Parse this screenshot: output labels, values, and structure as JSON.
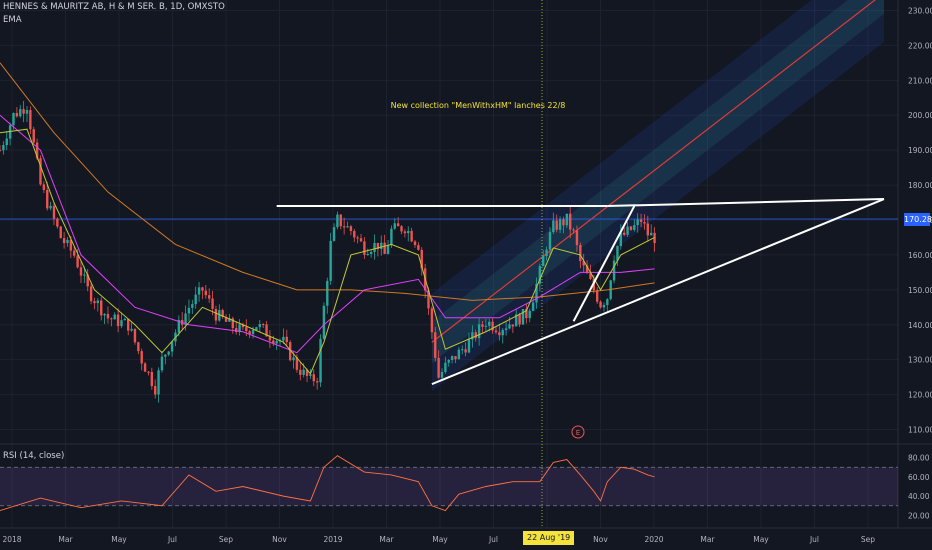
{
  "header": {
    "symbol": "HENNES & MAURITZ AB, H & M SER. B, 1D, OMXSTO",
    "indicator": "EMA"
  },
  "rsi_label": "RSI (14, close)",
  "last_price_label": "170.28",
  "crosshair_date_label": "22 Aug '19",
  "event_marker": "E",
  "annotation": "New collection \"MenWithxHM\" lanches 22/8",
  "colors": {
    "background": "#131722",
    "up": "#26a69a",
    "down": "#ef5350",
    "ema_fast": "#c0ca33",
    "ema_mid": "#e040fb",
    "ema_slow": "#d17a22",
    "rsi": "#ff7043",
    "channel_center": "#e53935",
    "trendline": "#ffffff"
  },
  "chart_data": {
    "type": "candlestick",
    "price_axis_ticks": [
      "230.00",
      "220.00",
      "210.00",
      "200.00",
      "190.00",
      "180.00",
      "170.00",
      "160.00",
      "150.00",
      "140.00",
      "130.00",
      "120.00",
      "110.00"
    ],
    "rsi_axis_ticks": [
      "80.00",
      "60.00",
      "40.00",
      "20.00"
    ],
    "time_axis_ticks": [
      "2018",
      "Mar",
      "May",
      "Jul",
      "Sep",
      "Nov",
      "2019",
      "Mar",
      "May",
      "Jul",
      "Sep",
      "Nov",
      "2020",
      "Mar",
      "May",
      "Jul",
      "Sep"
    ],
    "ylim": [
      107,
      233
    ],
    "rsi_ylim": [
      10,
      90
    ],
    "rsi_bands": [
      70,
      30
    ],
    "last_price": 170.28,
    "price_path": [
      [
        0,
        190
      ],
      [
        2,
        200
      ],
      [
        4,
        203
      ],
      [
        6,
        180
      ],
      [
        9,
        165
      ],
      [
        11,
        160
      ],
      [
        13,
        150
      ],
      [
        16,
        142
      ],
      [
        19,
        140
      ],
      [
        21,
        130
      ],
      [
        23,
        122
      ],
      [
        24,
        130
      ],
      [
        26,
        138
      ],
      [
        28,
        145
      ],
      [
        30,
        150
      ],
      [
        32,
        143
      ],
      [
        34,
        140
      ],
      [
        36,
        138
      ],
      [
        38,
        140
      ],
      [
        40,
        137
      ],
      [
        42,
        135
      ],
      [
        44,
        128
      ],
      [
        46,
        124
      ],
      [
        47,
        125
      ],
      [
        48,
        145
      ],
      [
        49,
        163
      ],
      [
        50,
        170
      ],
      [
        52,
        167
      ],
      [
        54,
        162
      ],
      [
        56,
        163
      ],
      [
        57,
        160
      ],
      [
        58,
        167
      ],
      [
        60,
        168
      ],
      [
        62,
        163
      ],
      [
        63,
        150
      ],
      [
        64,
        138
      ],
      [
        65,
        125
      ],
      [
        66,
        128
      ],
      [
        68,
        132
      ],
      [
        70,
        136
      ],
      [
        72,
        141
      ],
      [
        74,
        139
      ],
      [
        76,
        141
      ],
      [
        78,
        143
      ],
      [
        79,
        148
      ],
      [
        80,
        155
      ],
      [
        81,
        163
      ],
      [
        82,
        168
      ],
      [
        84,
        170
      ],
      [
        85,
        166
      ],
      [
        86,
        158
      ],
      [
        88,
        150
      ],
      [
        89,
        146
      ],
      [
        90,
        148
      ],
      [
        91,
        160
      ],
      [
        92,
        165
      ],
      [
        94,
        168
      ],
      [
        95,
        170
      ],
      [
        96,
        166
      ],
      [
        97,
        165
      ]
    ],
    "ema_fast_path": [
      [
        0,
        195
      ],
      [
        4,
        196
      ],
      [
        8,
        175
      ],
      [
        14,
        150
      ],
      [
        20,
        140
      ],
      [
        24,
        132
      ],
      [
        30,
        145
      ],
      [
        36,
        140
      ],
      [
        42,
        135
      ],
      [
        46,
        126
      ],
      [
        48,
        135
      ],
      [
        52,
        160
      ],
      [
        58,
        163
      ],
      [
        62,
        160
      ],
      [
        66,
        133
      ],
      [
        72,
        138
      ],
      [
        78,
        144
      ],
      [
        82,
        162
      ],
      [
        86,
        160
      ],
      [
        89,
        150
      ],
      [
        92,
        160
      ],
      [
        97,
        165
      ]
    ],
    "ema_mid_path": [
      [
        0,
        200
      ],
      [
        6,
        190
      ],
      [
        12,
        160
      ],
      [
        20,
        145
      ],
      [
        28,
        140
      ],
      [
        36,
        138
      ],
      [
        44,
        132
      ],
      [
        48,
        140
      ],
      [
        54,
        150
      ],
      [
        62,
        153
      ],
      [
        66,
        142
      ],
      [
        74,
        142
      ],
      [
        80,
        148
      ],
      [
        86,
        155
      ],
      [
        92,
        155
      ],
      [
        97,
        156
      ]
    ],
    "ema_slow_path": [
      [
        0,
        215
      ],
      [
        8,
        195
      ],
      [
        16,
        178
      ],
      [
        26,
        163
      ],
      [
        36,
        155
      ],
      [
        44,
        150
      ],
      [
        52,
        150
      ],
      [
        60,
        149
      ],
      [
        70,
        147
      ],
      [
        80,
        148
      ],
      [
        90,
        150
      ],
      [
        97,
        152
      ]
    ],
    "rsi_path": [
      [
        0,
        25
      ],
      [
        6,
        38
      ],
      [
        12,
        28
      ],
      [
        18,
        35
      ],
      [
        24,
        30
      ],
      [
        28,
        62
      ],
      [
        32,
        45
      ],
      [
        36,
        50
      ],
      [
        42,
        40
      ],
      [
        46,
        35
      ],
      [
        48,
        70
      ],
      [
        50,
        82
      ],
      [
        54,
        65
      ],
      [
        58,
        62
      ],
      [
        62,
        55
      ],
      [
        64,
        30
      ],
      [
        66,
        25
      ],
      [
        68,
        42
      ],
      [
        72,
        50
      ],
      [
        76,
        55
      ],
      [
        80,
        55
      ],
      [
        82,
        75
      ],
      [
        84,
        78
      ],
      [
        86,
        62
      ],
      [
        88,
        45
      ],
      [
        89,
        35
      ],
      [
        90,
        55
      ],
      [
        92,
        70
      ],
      [
        94,
        68
      ],
      [
        96,
        62
      ],
      [
        97,
        60
      ]
    ],
    "trendlines": [
      {
        "from": [
          41,
          174
        ],
        "to": [
          90,
          174
        ]
      },
      {
        "from": [
          64,
          123
        ],
        "to": [
          131,
          176
        ]
      },
      {
        "from": [
          90,
          174
        ],
        "to": [
          131,
          176
        ]
      },
      {
        "from": [
          85,
          141
        ],
        "to": [
          94,
          174
        ]
      }
    ],
    "channel": {
      "center": [
        [
          64,
          135
        ],
        [
          131,
          235
        ]
      ],
      "width_inner": 6,
      "width_outer": 14
    }
  }
}
